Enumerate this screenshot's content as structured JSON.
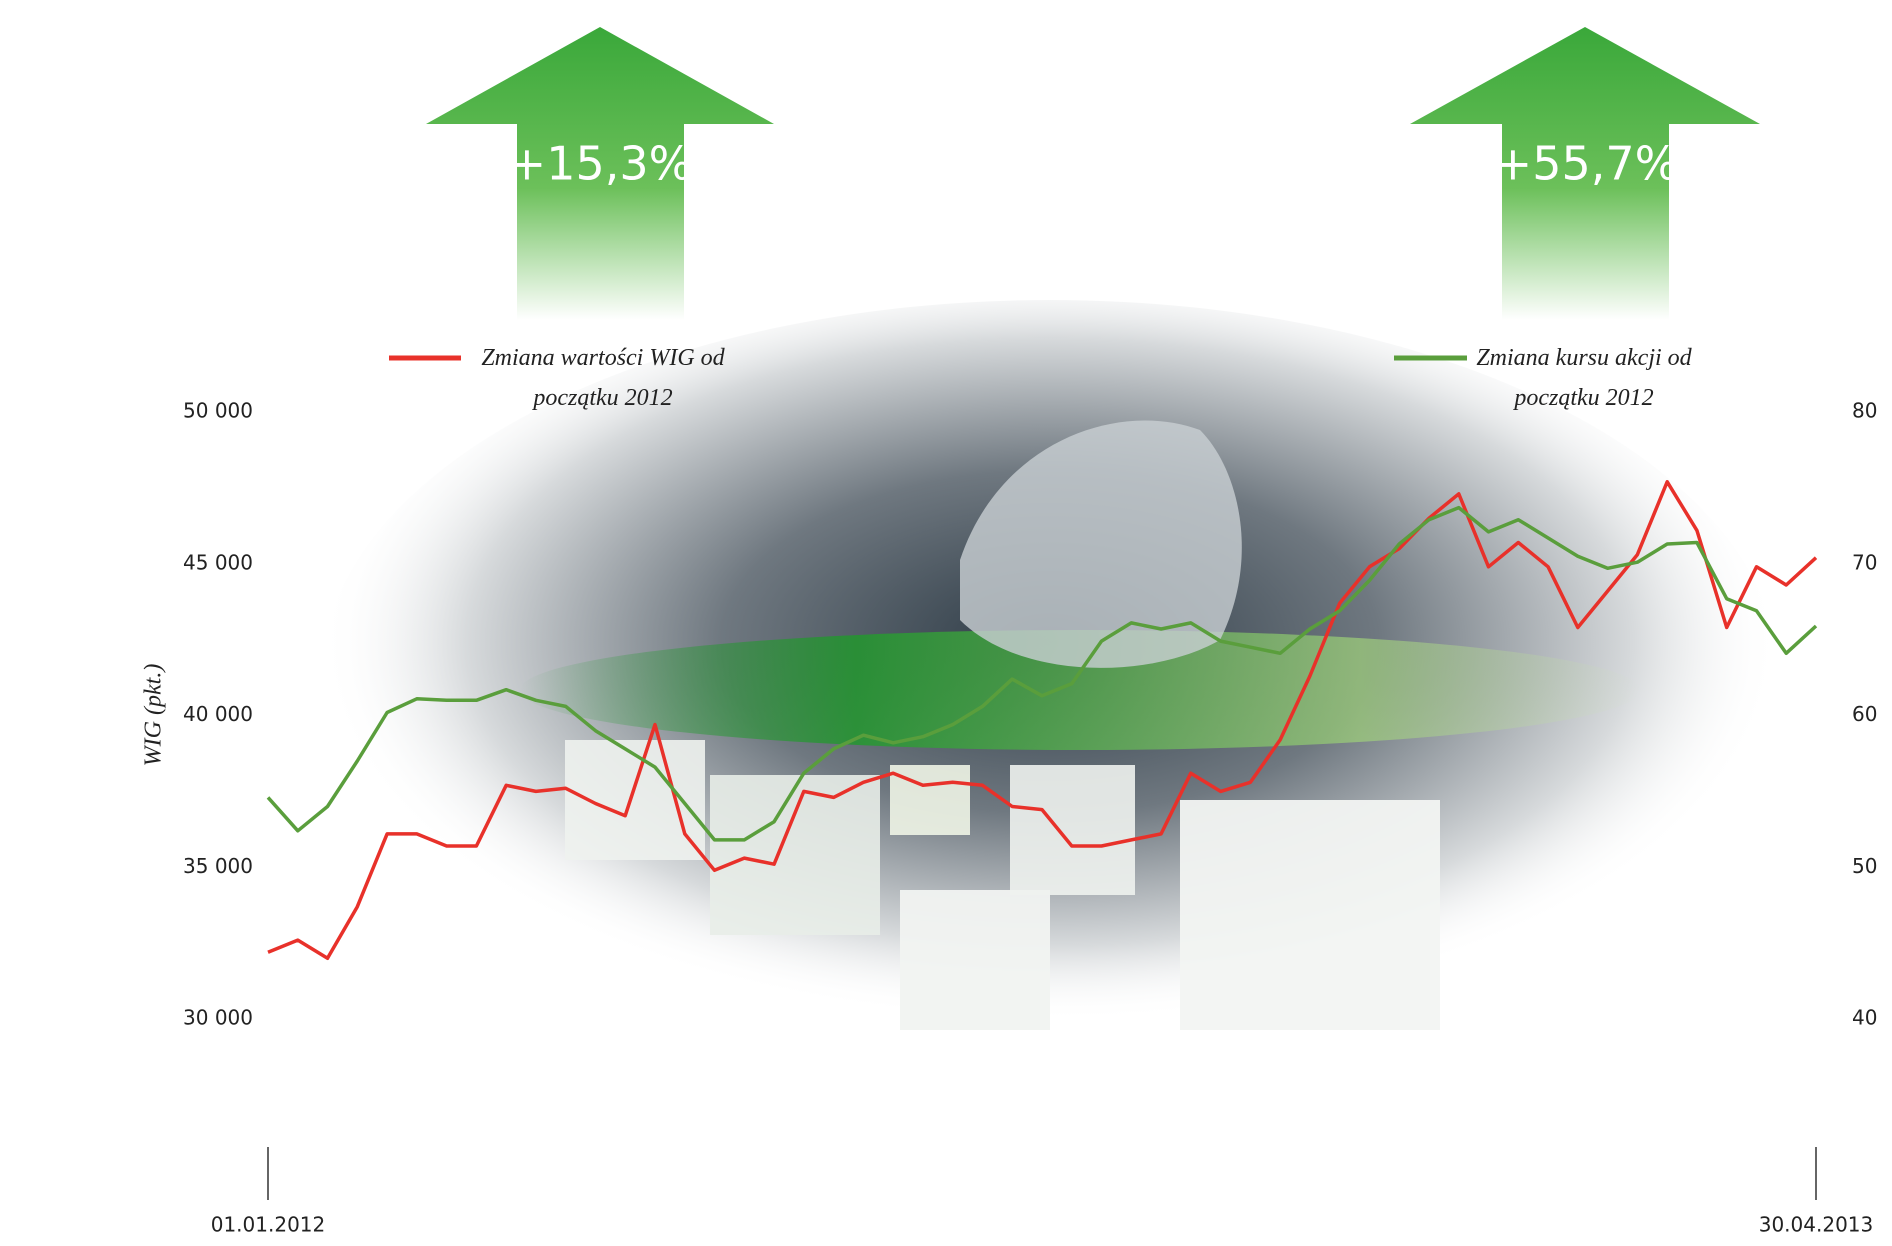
{
  "chart_data": {
    "type": "line",
    "y_label": "WIG (pkt.)",
    "annotations": [
      "+15,3%",
      "+55,7%"
    ],
    "categories": [
      "01.01.2012",
      null,
      null,
      null,
      null,
      null,
      null,
      null,
      null,
      null,
      null,
      null,
      null,
      null,
      null,
      null,
      null,
      null,
      null,
      null,
      null,
      null,
      null,
      null,
      null,
      null,
      null,
      null,
      null,
      null,
      null,
      null,
      null,
      null,
      null,
      null,
      null,
      null,
      null,
      null,
      null,
      null,
      null,
      null,
      null,
      null,
      null,
      null,
      null,
      null,
      null,
      null,
      "30.04.2013"
    ],
    "series": [
      {
        "name": "Zmiana wartości WIG od początku 2012",
        "color": "#e8312a",
        "axis": "y",
        "values": [
          32200,
          32600,
          32000,
          33700,
          36100,
          36100,
          35700,
          35700,
          37700,
          37500,
          37600,
          37100,
          36700,
          39700,
          36100,
          34900,
          35300,
          35100,
          37500,
          37300,
          37800,
          38100,
          37700,
          37800,
          37700,
          37000,
          36900,
          35700,
          35700,
          35900,
          36100,
          38100,
          37500,
          37800,
          39200,
          41300,
          43700,
          44900,
          45500,
          46500,
          47300,
          44900,
          45700,
          44900,
          42900,
          44100,
          45300,
          47700,
          46100,
          42900,
          44900,
          44300,
          45200
        ]
      },
      {
        "name": "Zmiana kursu akcji od początku 2012",
        "color": "#5a9e3c",
        "axis": "y2",
        "values": [
          54.6,
          52.4,
          54.0,
          57.0,
          60.2,
          61.1,
          61.0,
          61.0,
          61.7,
          61.0,
          60.6,
          59.0,
          57.8,
          56.6,
          54.2,
          51.8,
          51.8,
          53.0,
          56.2,
          57.8,
          58.7,
          58.2,
          58.6,
          59.4,
          60.6,
          62.4,
          61.3,
          62.1,
          64.9,
          66.1,
          65.7,
          66.1,
          64.9,
          64.5,
          64.1,
          65.7,
          66.9,
          68.9,
          71.3,
          72.9,
          73.7,
          72.1,
          72.9,
          71.7,
          70.5,
          69.7,
          70.1,
          71.3,
          71.4,
          67.7,
          66.9,
          64.1,
          65.9
        ]
      }
    ],
    "ylim": [
      30000,
      50000
    ],
    "yticks": [
      {
        "value": 30000,
        "label": "30 000"
      },
      {
        "value": 35000,
        "label": "35 000"
      },
      {
        "value": 40000,
        "label": "40 000"
      },
      {
        "value": 45000,
        "label": "45 000"
      },
      {
        "value": 50000,
        "label": "50 000"
      }
    ],
    "y2lim": [
      40,
      80
    ],
    "y2ticks": [
      40,
      50,
      60,
      70,
      80
    ],
    "grid": false
  }
}
